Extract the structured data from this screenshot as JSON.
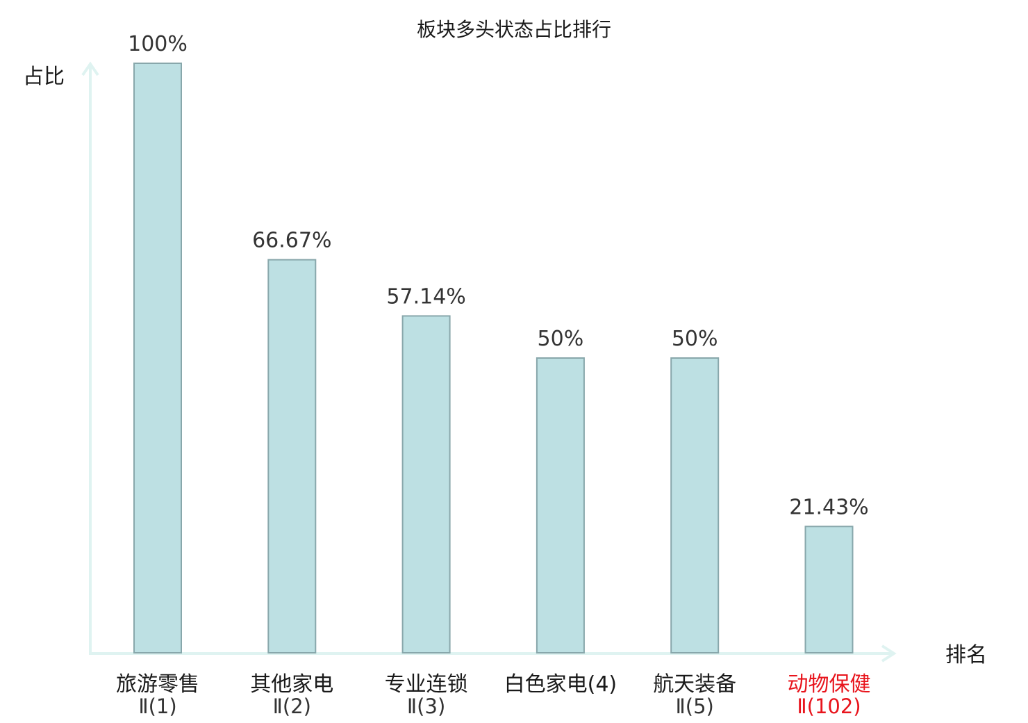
{
  "chart_data": {
    "type": "bar",
    "title": "板块多头状态占比排行",
    "ylabel": "占比",
    "xlabel": "排名",
    "ylim": [
      0,
      100
    ],
    "grid": false,
    "categories": [
      {
        "name": "旅游零售",
        "sub": "Ⅱ(1)",
        "highlight": false
      },
      {
        "name": "其他家电",
        "sub": "Ⅱ(2)",
        "highlight": false
      },
      {
        "name": "专业连锁",
        "sub": "Ⅱ(3)",
        "highlight": false
      },
      {
        "name": "白色家电(4)",
        "sub": "",
        "highlight": false
      },
      {
        "name": "航天装备",
        "sub": "Ⅱ(5)",
        "highlight": false
      },
      {
        "name": "动物保健",
        "sub": "Ⅱ(102)",
        "highlight": true
      }
    ],
    "values": [
      100,
      66.67,
      57.14,
      50,
      50,
      21.43
    ],
    "value_labels": [
      "100%",
      "66.67%",
      "57.14%",
      "50%",
      "50%",
      "21.43%"
    ],
    "colors": {
      "bar_fill": "#bde0e3",
      "bar_stroke": "#88a7ab",
      "axis": "#dff3f1",
      "text": "#1a1a1a",
      "highlight": "#e8141c"
    }
  }
}
